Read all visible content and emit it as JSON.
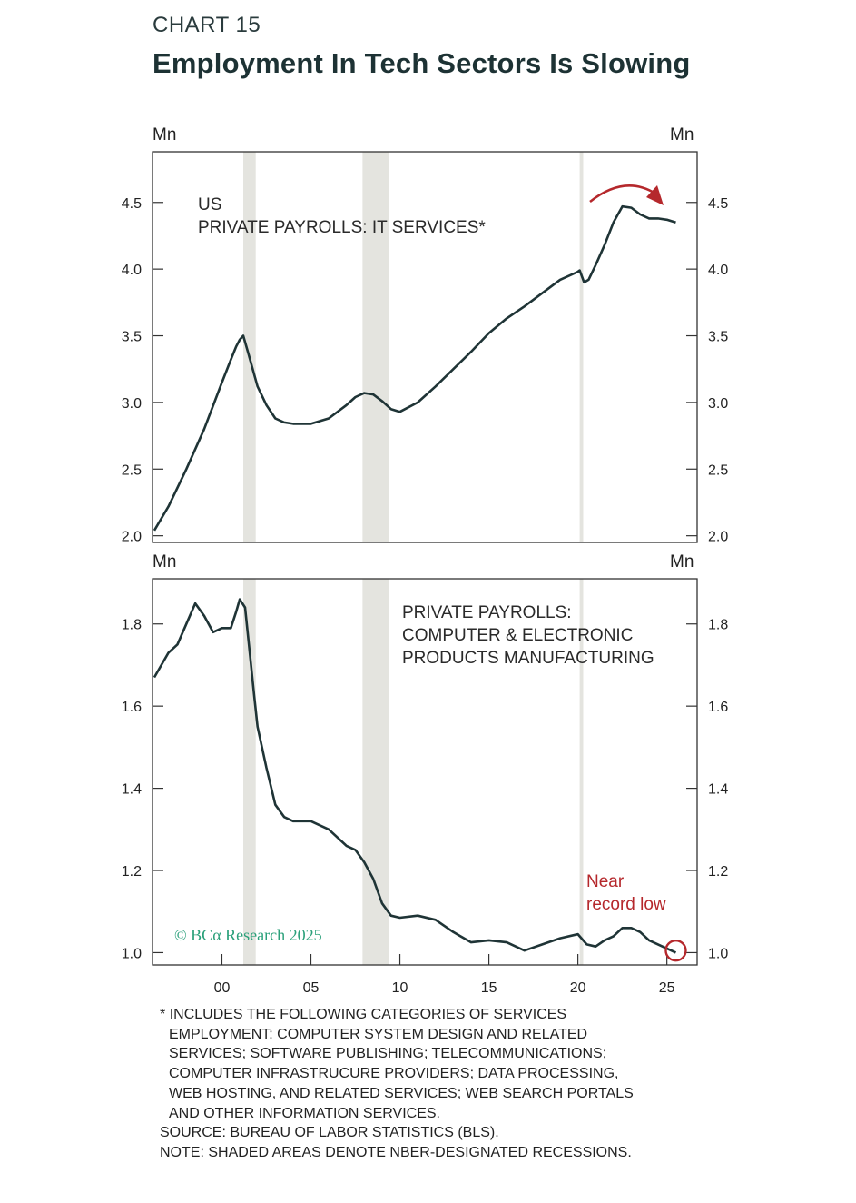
{
  "header": {
    "label": "CHART 15",
    "title": "Employment In Tech Sectors Is Slowing"
  },
  "recessions": [
    [
      2001.2,
      2001.9
    ],
    [
      2007.9,
      2009.4
    ],
    [
      2020.1,
      2020.3
    ]
  ],
  "watermark": "© BCα Research 2025",
  "footnotes": {
    "asterisk": "*",
    "lines": [
      "INCLUDES THE FOLLOWING CATEGORIES OF SERVICES",
      "EMPLOYMENT: COMPUTER SYSTEM DESIGN AND RELATED",
      "SERVICES; SOFTWARE PUBLISHING; TELECOMMUNICATIONS;",
      "COMPUTER INFRASTRUCURE PROVIDERS; DATA PROCESSING,",
      "WEB HOSTING, AND RELATED SERVICES; WEB SEARCH PORTALS",
      "AND OTHER INFORMATION SERVICES."
    ],
    "source": "SOURCE: BUREAU OF LABOR STATISTICS (BLS).",
    "note": "NOTE: SHADED AREAS DENOTE NBER-DESIGNATED RECESSIONS."
  },
  "chart_data": [
    {
      "type": "line",
      "unit_left": "Mn",
      "unit_right": "Mn",
      "annotation_lines": [
        "US",
        "PRIVATE PAYROLLS: IT SERVICES*"
      ],
      "xlim": [
        1996.1,
        2026.7
      ],
      "ylim": [
        1.95,
        4.88
      ],
      "yticks": [
        2.0,
        2.5,
        3.0,
        3.5,
        4.0,
        4.5
      ],
      "ytick_labels": [
        "2.0",
        "2.5",
        "3.0",
        "3.5",
        "4.0",
        "4.5"
      ],
      "series": [
        {
          "color": "#1f3436",
          "x": [
            1996.2,
            1997,
            1998,
            1999,
            2000,
            2000.5,
            2000.8,
            2001,
            2001.2,
            2001.5,
            2002,
            2002.5,
            2003,
            2003.5,
            2004,
            2005,
            2006,
            2007,
            2007.5,
            2008,
            2008.5,
            2009,
            2009.5,
            2010,
            2011,
            2012,
            2013,
            2014,
            2015,
            2016,
            2017,
            2018,
            2019,
            2020,
            2020.1,
            2020.35,
            2020.6,
            2021,
            2021.5,
            2022,
            2022.5,
            2023,
            2023.5,
            2024,
            2024.5,
            2025,
            2025.5
          ],
          "values": [
            2.04,
            2.22,
            2.5,
            2.8,
            3.15,
            3.32,
            3.42,
            3.47,
            3.5,
            3.36,
            3.12,
            2.98,
            2.88,
            2.85,
            2.84,
            2.84,
            2.88,
            2.98,
            3.04,
            3.07,
            3.06,
            3.01,
            2.95,
            2.93,
            3.0,
            3.12,
            3.25,
            3.38,
            3.52,
            3.63,
            3.72,
            3.82,
            3.92,
            3.98,
            3.99,
            3.9,
            3.92,
            4.03,
            4.18,
            4.35,
            4.47,
            4.46,
            4.41,
            4.38,
            4.38,
            4.37,
            4.35
          ]
        }
      ],
      "arrow_color": "#b5282c"
    },
    {
      "type": "line",
      "unit_left": "Mn",
      "unit_right": "Mn",
      "annotation_lines": [
        "PRIVATE PAYROLLS:",
        "COMPUTER & ELECTRONIC",
        "PRODUCTS MANUFACTURING"
      ],
      "xlim": [
        1996.1,
        2026.7
      ],
      "ylim": [
        0.97,
        1.91
      ],
      "yticks": [
        1.0,
        1.2,
        1.4,
        1.6,
        1.8
      ],
      "ytick_labels": [
        "1.0",
        "1.2",
        "1.4",
        "1.6",
        "1.8"
      ],
      "xticks": [
        2000,
        2005,
        2010,
        2015,
        2020,
        2025
      ],
      "xtick_labels": [
        "00",
        "05",
        "10",
        "15",
        "20",
        "25"
      ],
      "series": [
        {
          "color": "#1f3436",
          "x": [
            1996.2,
            1997,
            1997.5,
            1998,
            1998.5,
            1999,
            1999.5,
            2000,
            2000.5,
            2000.8,
            2001,
            2001.3,
            2001.8,
            2002,
            2002.5,
            2003,
            2003.5,
            2004,
            2005,
            2006,
            2007,
            2007.5,
            2008,
            2008.5,
            2009,
            2009.5,
            2010,
            2011,
            2012,
            2013,
            2014,
            2015,
            2016,
            2017,
            2018,
            2019,
            2020,
            2020.5,
            2021,
            2021.5,
            2022,
            2022.5,
            2023,
            2023.5,
            2024,
            2024.5,
            2025,
            2025.5
          ],
          "values": [
            1.67,
            1.73,
            1.75,
            1.8,
            1.85,
            1.82,
            1.78,
            1.79,
            1.79,
            1.83,
            1.86,
            1.84,
            1.63,
            1.55,
            1.45,
            1.36,
            1.33,
            1.32,
            1.32,
            1.3,
            1.26,
            1.25,
            1.22,
            1.18,
            1.12,
            1.09,
            1.085,
            1.09,
            1.08,
            1.05,
            1.025,
            1.03,
            1.025,
            1.005,
            1.02,
            1.035,
            1.045,
            1.02,
            1.015,
            1.03,
            1.04,
            1.06,
            1.06,
            1.05,
            1.03,
            1.02,
            1.01,
            1.0
          ]
        }
      ],
      "annotation_red_lines": [
        "Near",
        "record low"
      ],
      "marker": {
        "x": 2025.5,
        "y": 1.005,
        "color": "#b5282c"
      }
    }
  ]
}
